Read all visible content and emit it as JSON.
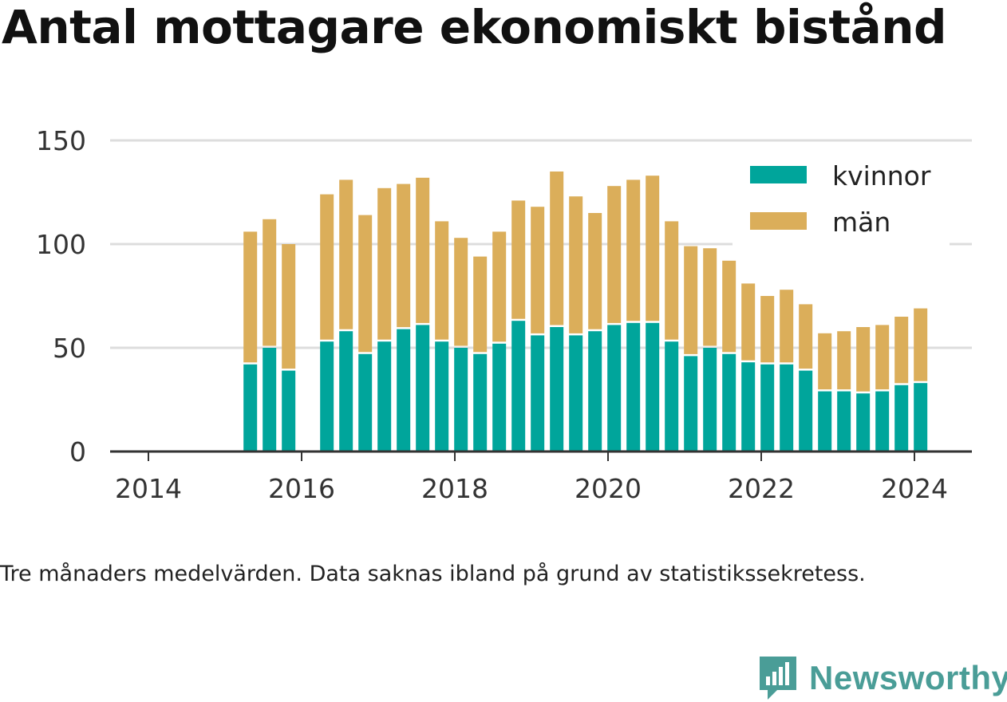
{
  "title": "Antal mottagare ekonomiskt bistånd",
  "note": "Tre månaders medelvärden. Data saknas ibland på grund av statistikssekretess.",
  "brand": "Newsworthy",
  "colors": {
    "kvinnor": "#00a59b",
    "man": "#dbae5a",
    "grid": "#dddddd",
    "axis": "#333333",
    "brand": "#4a9d97"
  },
  "chart_data": {
    "type": "bar",
    "stacked": true,
    "title": "Antal mottagare ekonomiskt bistånd",
    "xlabel": "",
    "ylabel": "",
    "ylim": [
      0,
      150
    ],
    "xlim": [
      2013.5,
      2024.75
    ],
    "y_ticks": [
      0,
      50,
      100,
      150
    ],
    "x_ticks": [
      2014,
      2016,
      2018,
      2020,
      2022,
      2024
    ],
    "grid": true,
    "legend_position": "top-right",
    "x": [
      2015.33,
      2015.58,
      2015.83,
      2016.33,
      2016.58,
      2016.83,
      2017.08,
      2017.33,
      2017.58,
      2017.83,
      2018.08,
      2018.33,
      2018.58,
      2018.83,
      2019.08,
      2019.33,
      2019.58,
      2019.83,
      2020.08,
      2020.33,
      2020.58,
      2020.83,
      2021.08,
      2021.33,
      2021.58,
      2021.83,
      2022.08,
      2022.33,
      2022.58,
      2022.83,
      2023.08,
      2023.33,
      2023.58,
      2023.83,
      2024.08
    ],
    "series": [
      {
        "name": "kvinnor",
        "values": [
          42,
          50,
          39,
          53,
          58,
          47,
          53,
          59,
          61,
          53,
          50,
          47,
          52,
          63,
          56,
          60,
          56,
          58,
          61,
          62,
          62,
          53,
          46,
          50,
          47,
          43,
          42,
          42,
          39,
          29,
          29,
          28,
          29,
          32,
          33
        ]
      },
      {
        "name": "män",
        "values": [
          64,
          62,
          61,
          71,
          73,
          67,
          74,
          70,
          71,
          58,
          53,
          47,
          54,
          58,
          62,
          75,
          67,
          57,
          67,
          69,
          71,
          58,
          53,
          48,
          45,
          38,
          33,
          36,
          32,
          28,
          29,
          32,
          32,
          33,
          36
        ]
      }
    ]
  }
}
